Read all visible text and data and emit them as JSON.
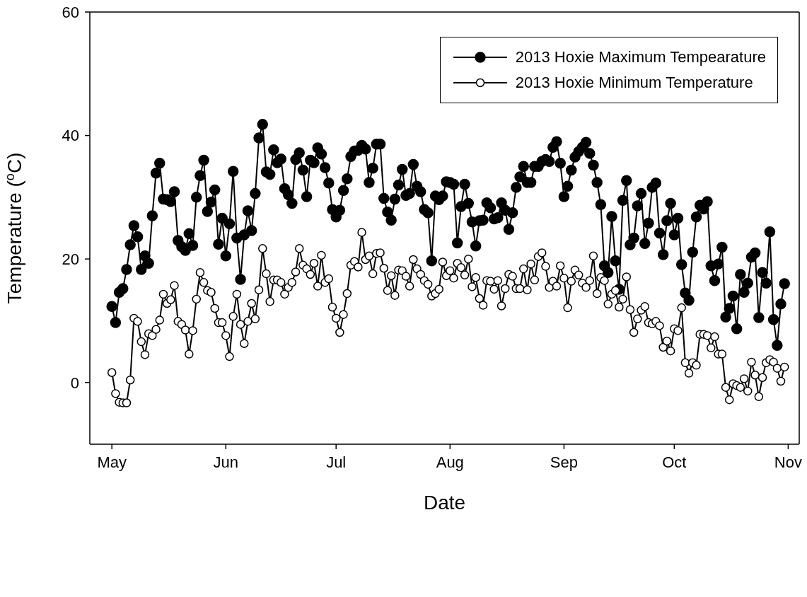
{
  "chart_data": {
    "type": "line",
    "xlabel": "Date",
    "ylabel": "Temperature ($^{o}$C)",
    "xlim": [
      "2013-04-25",
      "2013-11-04"
    ],
    "xticks": [
      {
        "value": "2013-05-01",
        "label": "May"
      },
      {
        "value": "2013-06-01",
        "label": "Jun"
      },
      {
        "value": "2013-07-01",
        "label": "Jul"
      },
      {
        "value": "2013-08-01",
        "label": "Aug"
      },
      {
        "value": "2013-09-01",
        "label": "Sep"
      },
      {
        "value": "2013-10-01",
        "label": "Oct"
      },
      {
        "value": "2013-11-01",
        "label": "Nov"
      }
    ],
    "ylim": [
      -10,
      60
    ],
    "yticks": [
      0,
      20,
      40,
      60
    ],
    "grid": false,
    "legend": "top right",
    "marker": "circle",
    "line_style": "solid",
    "x": [
      "2013-05-01",
      "2013-05-02",
      "2013-05-03",
      "2013-05-04",
      "2013-05-05",
      "2013-05-06",
      "2013-05-07",
      "2013-05-08",
      "2013-05-09",
      "2013-05-10",
      "2013-05-11",
      "2013-05-12",
      "2013-05-13",
      "2013-05-14",
      "2013-05-15",
      "2013-05-16",
      "2013-05-17",
      "2013-05-18",
      "2013-05-19",
      "2013-05-20",
      "2013-05-21",
      "2013-05-22",
      "2013-05-23",
      "2013-05-24",
      "2013-05-25",
      "2013-05-26",
      "2013-05-27",
      "2013-05-28",
      "2013-05-29",
      "2013-05-30",
      "2013-05-31",
      "2013-06-01",
      "2013-06-02",
      "2013-06-03",
      "2013-06-04",
      "2013-06-05",
      "2013-06-06",
      "2013-06-07",
      "2013-06-08",
      "2013-06-09",
      "2013-06-10",
      "2013-06-11",
      "2013-06-12",
      "2013-06-13",
      "2013-06-14",
      "2013-06-15",
      "2013-06-16",
      "2013-06-17",
      "2013-06-18",
      "2013-06-19",
      "2013-06-20",
      "2013-06-21",
      "2013-06-22",
      "2013-06-23",
      "2013-06-24",
      "2013-06-25",
      "2013-06-26",
      "2013-06-27",
      "2013-06-28",
      "2013-06-29",
      "2013-06-30",
      "2013-07-01",
      "2013-07-02",
      "2013-07-03",
      "2013-07-04",
      "2013-07-05",
      "2013-07-06",
      "2013-07-07",
      "2013-07-08",
      "2013-07-09",
      "2013-07-10",
      "2013-07-11",
      "2013-07-12",
      "2013-07-13",
      "2013-07-14",
      "2013-07-15",
      "2013-07-16",
      "2013-07-17",
      "2013-07-18",
      "2013-07-19",
      "2013-07-20",
      "2013-07-21",
      "2013-07-22",
      "2013-07-23",
      "2013-07-24",
      "2013-07-25",
      "2013-07-26",
      "2013-07-27",
      "2013-07-28",
      "2013-07-29",
      "2013-07-30",
      "2013-07-31",
      "2013-08-01",
      "2013-08-02",
      "2013-08-03",
      "2013-08-04",
      "2013-08-05",
      "2013-08-06",
      "2013-08-07",
      "2013-08-08",
      "2013-08-09",
      "2013-08-10",
      "2013-08-11",
      "2013-08-12",
      "2013-08-13",
      "2013-08-14",
      "2013-08-15",
      "2013-08-16",
      "2013-08-17",
      "2013-08-18",
      "2013-08-19",
      "2013-08-20",
      "2013-08-21",
      "2013-08-22",
      "2013-08-23",
      "2013-08-24",
      "2013-08-25",
      "2013-08-26",
      "2013-08-27",
      "2013-08-28",
      "2013-08-29",
      "2013-08-30",
      "2013-08-31",
      "2013-09-01",
      "2013-09-02",
      "2013-09-03",
      "2013-09-04",
      "2013-09-05",
      "2013-09-06",
      "2013-09-07",
      "2013-09-08",
      "2013-09-09",
      "2013-09-10",
      "2013-09-11",
      "2013-09-12",
      "2013-09-13",
      "2013-09-14",
      "2013-09-15",
      "2013-09-16",
      "2013-09-17",
      "2013-09-18",
      "2013-09-19",
      "2013-09-20",
      "2013-09-21",
      "2013-09-22",
      "2013-09-23",
      "2013-09-24",
      "2013-09-25",
      "2013-09-26",
      "2013-09-27",
      "2013-09-28",
      "2013-09-29",
      "2013-09-30",
      "2013-10-01",
      "2013-10-02",
      "2013-10-03",
      "2013-10-04",
      "2013-10-05",
      "2013-10-06",
      "2013-10-07",
      "2013-10-08",
      "2013-10-09",
      "2013-10-10",
      "2013-10-11",
      "2013-10-12",
      "2013-10-13",
      "2013-10-14",
      "2013-10-15",
      "2013-10-16",
      "2013-10-17",
      "2013-10-18",
      "2013-10-19",
      "2013-10-20",
      "2013-10-21",
      "2013-10-22",
      "2013-10-23",
      "2013-10-24",
      "2013-10-25",
      "2013-10-26",
      "2013-10-27",
      "2013-10-28",
      "2013-10-29",
      "2013-10-30",
      "2013-10-31"
    ],
    "series": [
      {
        "name": "2013 Hoxie Maximum Tempearature",
        "color": "#000000",
        "values": [
          12.3,
          9.7,
          14.6,
          15.2,
          18.3,
          22.3,
          25.4,
          23.6,
          18.3,
          20.5,
          19.3,
          27.0,
          33.9,
          35.5,
          29.7,
          29.6,
          29.3,
          30.9,
          23.0,
          22.0,
          21.4,
          24.1,
          22.2,
          30.0,
          33.5,
          36.0,
          27.7,
          29.2,
          31.2,
          22.4,
          26.6,
          20.5,
          25.7,
          34.2,
          23.4,
          16.7,
          23.9,
          27.8,
          24.6,
          30.6,
          39.6,
          41.8,
          34.1,
          33.7,
          37.7,
          35.6,
          36.2,
          31.4,
          30.4,
          29.0,
          36.1,
          37.2,
          34.4,
          30.1,
          36.0,
          35.6,
          38.0,
          37.0,
          34.8,
          32.3,
          28.0,
          26.8,
          27.9,
          31.1,
          33.0,
          36.6,
          37.5,
          37.6,
          38.4,
          37.8,
          32.4,
          34.7,
          38.6,
          38.6,
          29.8,
          27.6,
          26.3,
          29.7,
          32.0,
          34.5,
          30.3,
          30.6,
          35.3,
          31.8,
          30.9,
          28.0,
          27.5,
          19.7,
          30.2,
          29.6,
          30.2,
          32.5,
          32.4,
          32.1,
          22.6,
          28.5,
          32.1,
          29.0,
          26.0,
          22.1,
          26.2,
          26.3,
          29.1,
          28.3,
          26.5,
          26.7,
          29.1,
          27.9,
          24.8,
          27.5,
          31.6,
          33.3,
          35.0,
          32.4,
          32.4,
          35.0,
          35.0,
          35.8,
          36.1,
          35.8,
          38.1,
          39.0,
          35.5,
          30.1,
          31.8,
          34.4,
          36.5,
          37.4,
          38.1,
          38.9,
          37.1,
          35.2,
          32.4,
          28.8,
          18.9,
          17.8,
          26.9,
          19.7,
          15.1,
          29.5,
          32.7,
          22.3,
          23.4,
          28.6,
          30.6,
          22.5,
          25.8,
          31.6,
          32.3,
          24.2,
          20.7,
          26.2,
          29.0,
          23.9,
          26.6,
          19.1,
          14.5,
          13.3,
          21.1,
          26.8,
          28.7,
          28.1,
          29.3,
          18.9,
          16.5,
          19.2,
          21.9,
          10.6,
          12.0,
          14.0,
          8.7,
          17.5,
          14.6,
          16.1,
          20.3,
          21.0,
          10.5,
          17.8,
          16.1,
          24.4,
          10.2,
          6.0,
          12.7,
          16.0
        ]
      },
      {
        "name": "2013 Hoxie Minimum Temperature",
        "color": "#000000",
        "values": [
          1.6,
          -1.8,
          -3.2,
          -3.3,
          -3.3,
          0.4,
          10.4,
          9.9,
          6.6,
          4.5,
          7.9,
          7.6,
          8.6,
          10.1,
          14.3,
          12.8,
          13.4,
          15.7,
          9.9,
          9.4,
          8.5,
          4.6,
          8.4,
          13.5,
          17.8,
          16.2,
          14.9,
          14.6,
          12.0,
          9.7,
          9.7,
          7.6,
          4.2,
          10.7,
          14.3,
          9.4,
          6.3,
          9.9,
          12.8,
          10.3,
          15.0,
          21.7,
          17.6,
          13.1,
          16.6,
          16.6,
          16.2,
          14.3,
          15.4,
          16.2,
          17.9,
          21.7,
          19.0,
          18.4,
          17.5,
          19.3,
          15.6,
          20.6,
          16.2,
          16.8,
          12.2,
          10.4,
          8.1,
          11.0,
          14.4,
          19.0,
          19.6,
          18.7,
          24.3,
          19.9,
          20.5,
          17.6,
          20.9,
          21.0,
          18.5,
          14.9,
          17.3,
          14.1,
          18.2,
          18.1,
          17.2,
          15.6,
          19.9,
          18.4,
          17.5,
          16.5,
          15.9,
          14.0,
          14.4,
          15.1,
          19.5,
          17.3,
          18.1,
          16.9,
          19.3,
          18.6,
          17.4,
          20.0,
          15.5,
          17.0,
          13.6,
          12.5,
          16.5,
          16.4,
          15.1,
          16.5,
          12.4,
          15.2,
          17.5,
          17.2,
          15.2,
          15.2,
          18.4,
          15.0,
          19.2,
          16.6,
          20.4,
          21.0,
          18.8,
          15.4,
          16.4,
          15.6,
          18.9,
          16.9,
          12.1,
          16.4,
          18.2,
          17.4,
          16.1,
          15.4,
          16.5,
          20.5,
          14.4,
          17.0,
          16.5,
          12.7,
          14.3,
          14.9,
          12.2,
          13.5,
          17.1,
          11.8,
          8.1,
          10.3,
          11.7,
          12.3,
          9.7,
          9.5,
          9.9,
          9.2,
          5.7,
          6.7,
          5.1,
          8.7,
          8.4,
          12.1,
          3.2,
          1.5,
          3.2,
          2.8,
          7.8,
          7.8,
          7.6,
          5.6,
          7.4,
          4.6,
          4.6,
          -0.8,
          -2.8,
          -0.2,
          -0.5,
          -0.8,
          0.6,
          -1.4,
          3.3,
          1.2,
          -2.3,
          0.8,
          3.2,
          3.7,
          3.3,
          2.3,
          0.2,
          2.5
        ]
      }
    ]
  }
}
